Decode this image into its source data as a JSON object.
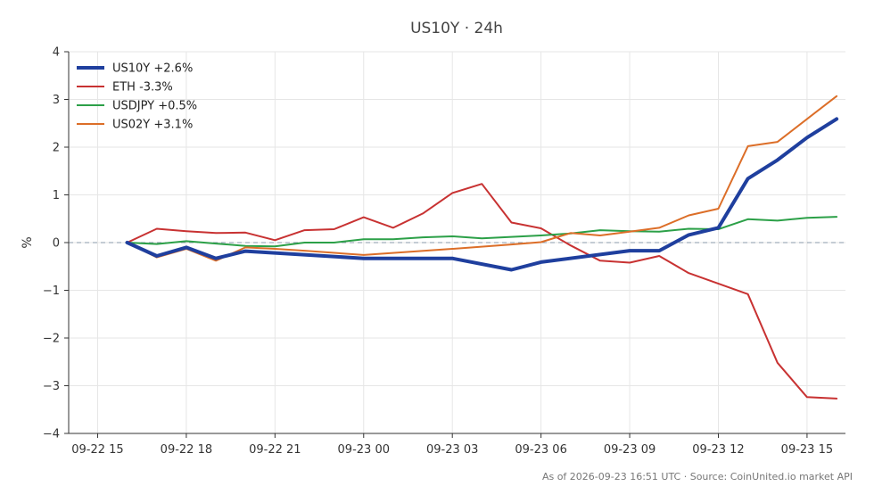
{
  "chart_data": {
    "type": "line",
    "title": "US10Y · 24h",
    "xlabel": "",
    "ylabel": "%",
    "ylim": [
      -4,
      4
    ],
    "yticks": [
      4,
      3,
      2,
      1,
      0,
      -1,
      -2,
      -3,
      -4
    ],
    "ytick_labels": [
      "4",
      "3",
      "2",
      "1",
      "0",
      "−1",
      "−2",
      "−3",
      "−4"
    ],
    "xlim": [
      -0.98,
      25.3
    ],
    "xticks": [
      0,
      3,
      6,
      9,
      12,
      15,
      18,
      21,
      24
    ],
    "xtick_labels": [
      "09-22 15",
      "09-22 18",
      "09-22 21",
      "09-23 00",
      "09-23 03",
      "09-23 06",
      "09-23 09",
      "09-23 12",
      "09-23 15"
    ],
    "grid": true,
    "zero_line": true,
    "legend_position": "top-left",
    "series": [
      {
        "name": "US10Y +2.6%",
        "color": "#1f3f9e",
        "width": 4,
        "points": [
          [
            1,
            0
          ],
          [
            2,
            -0.28
          ],
          [
            3,
            -0.1
          ],
          [
            4,
            -0.33
          ],
          [
            5,
            -0.18
          ],
          [
            9,
            -0.33
          ],
          [
            12,
            -0.33
          ],
          [
            14,
            -0.57
          ],
          [
            15,
            -0.41
          ],
          [
            18,
            -0.17
          ],
          [
            19,
            -0.17
          ],
          [
            20,
            0.16
          ],
          [
            21,
            0.31
          ],
          [
            22,
            1.34
          ],
          [
            23,
            1.73
          ],
          [
            24,
            2.2
          ],
          [
            25,
            2.59
          ]
        ]
      },
      {
        "name": "ETH -3.3%",
        "color": "#c83232",
        "width": 2,
        "points": [
          [
            1,
            0
          ],
          [
            2,
            0.29
          ],
          [
            3,
            0.24
          ],
          [
            4,
            0.2
          ],
          [
            5,
            0.21
          ],
          [
            6,
            0.05
          ],
          [
            7,
            0.26
          ],
          [
            8,
            0.28
          ],
          [
            9,
            0.53
          ],
          [
            10,
            0.31
          ],
          [
            11,
            0.61
          ],
          [
            12,
            1.04
          ],
          [
            13,
            1.23
          ],
          [
            14,
            0.42
          ],
          [
            15,
            0.3
          ],
          [
            16,
            -0.06
          ],
          [
            17,
            -0.38
          ],
          [
            18,
            -0.42
          ],
          [
            19,
            -0.28
          ],
          [
            20,
            -0.64
          ],
          [
            22,
            -1.08
          ],
          [
            23,
            -2.52
          ],
          [
            24,
            -3.24
          ],
          [
            25,
            -3.27
          ]
        ]
      },
      {
        "name": "USDJPY +0.5%",
        "color": "#2ca048",
        "width": 2,
        "points": [
          [
            1,
            0
          ],
          [
            2,
            -0.03
          ],
          [
            3,
            0.03
          ],
          [
            4,
            -0.02
          ],
          [
            5,
            -0.07
          ],
          [
            6,
            -0.08
          ],
          [
            7,
            0
          ],
          [
            8,
            0
          ],
          [
            9,
            0.07
          ],
          [
            10,
            0.07
          ],
          [
            11,
            0.11
          ],
          [
            12,
            0.13
          ],
          [
            13,
            0.09
          ],
          [
            14,
            0.12
          ],
          [
            15,
            0.15
          ],
          [
            16,
            0.19
          ],
          [
            17,
            0.26
          ],
          [
            18,
            0.24
          ],
          [
            19,
            0.23
          ],
          [
            20,
            0.29
          ],
          [
            21,
            0.28
          ],
          [
            22,
            0.49
          ],
          [
            23,
            0.46
          ],
          [
            24,
            0.52
          ],
          [
            25,
            0.54
          ]
        ]
      },
      {
        "name": "US02Y +3.1%",
        "color": "#dc6e28",
        "width": 2,
        "points": [
          [
            1,
            0
          ],
          [
            2,
            -0.31
          ],
          [
            3,
            -0.13
          ],
          [
            4,
            -0.38
          ],
          [
            5,
            -0.1
          ],
          [
            6,
            -0.13
          ],
          [
            7,
            -0.17
          ],
          [
            9,
            -0.26
          ],
          [
            12,
            -0.13
          ],
          [
            14,
            -0.04
          ],
          [
            15,
            0.01
          ],
          [
            16,
            0.2
          ],
          [
            17,
            0.15
          ],
          [
            18,
            0.23
          ],
          [
            19,
            0.31
          ],
          [
            20,
            0.57
          ],
          [
            21,
            0.71
          ],
          [
            22,
            2.02
          ],
          [
            23,
            2.11
          ],
          [
            24,
            2.59
          ],
          [
            25,
            3.07
          ]
        ]
      }
    ],
    "footer": "As of 2026-09-23 16:51 UTC · Source: CoinUnited.io market API"
  }
}
